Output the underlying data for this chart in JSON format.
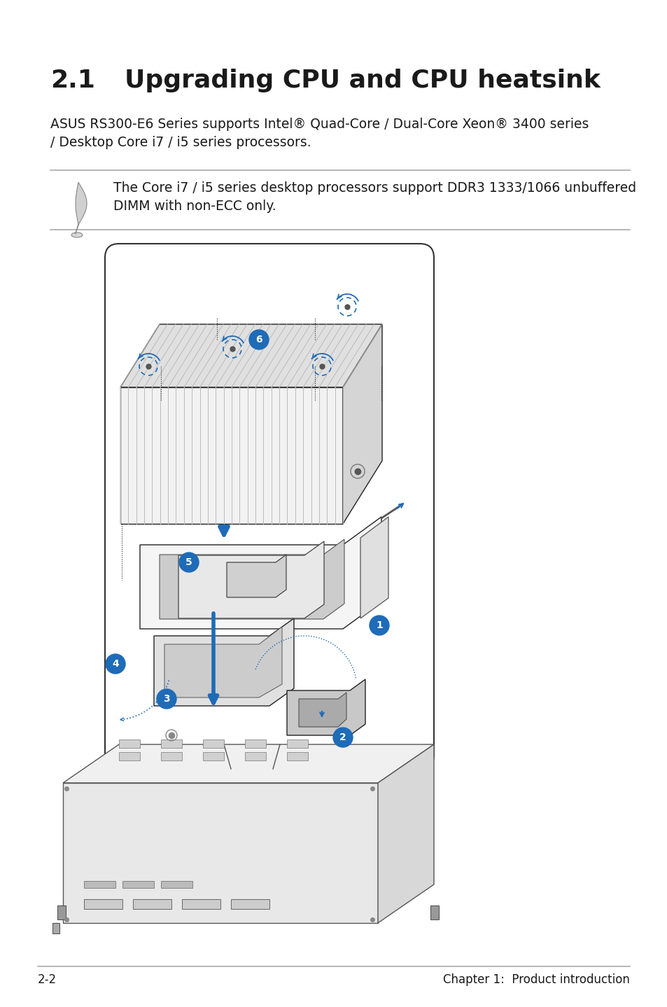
{
  "bg_color": "#ffffff",
  "title_number": "2.1",
  "title_text": "Upgrading CPU and CPU heatsink",
  "subtitle_line1": "ASUS RS300-E6 Series supports Intel® Quad-Core / Dual-Core Xeon® 3400 series",
  "subtitle_line2": "/ Desktop Core i7 / i5 series processors.",
  "note_text_line1": "The Core i7 / i5 series desktop processors support DDR3 1333/1066 unbuffered",
  "note_text_line2": "DIMM with non-ECC only.",
  "footer_left": "2-2",
  "footer_right": "Chapter 1:  Product introduction",
  "title_fontsize": 26,
  "subtitle_fontsize": 13.5,
  "note_fontsize": 13.5,
  "footer_fontsize": 12,
  "text_color": "#1a1a1a",
  "gray_line_color": "#aaaaaa",
  "blue_color": "#1e6bb8",
  "diagram_stroke": "#222222",
  "font_family": "DejaVu Sans"
}
